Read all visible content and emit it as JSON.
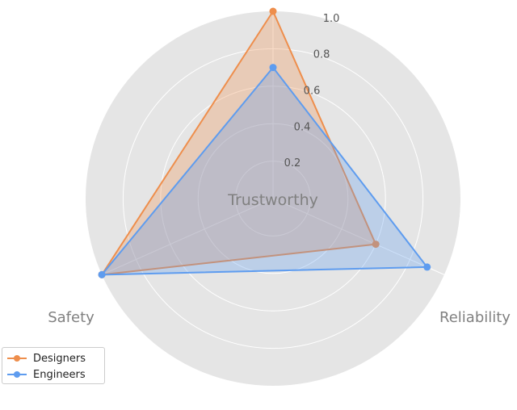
{
  "chart_data": {
    "type": "radar",
    "axes": [
      "Trustworthy",
      "Reliability",
      "Safety"
    ],
    "rlim": [
      0,
      1.0
    ],
    "rticks": [
      "0.2",
      "0.4",
      "0.6",
      "0.8",
      "1.0"
    ],
    "grid": true,
    "legend_position": "bottom-left",
    "series": [
      {
        "name": "Designers",
        "values": [
          1.0,
          0.6,
          1.0
        ],
        "color": "#EE8E4C"
      },
      {
        "name": "Engineers",
        "values": [
          0.7,
          0.9,
          1.0
        ],
        "color": "#5E9CEF"
      }
    ]
  }
}
